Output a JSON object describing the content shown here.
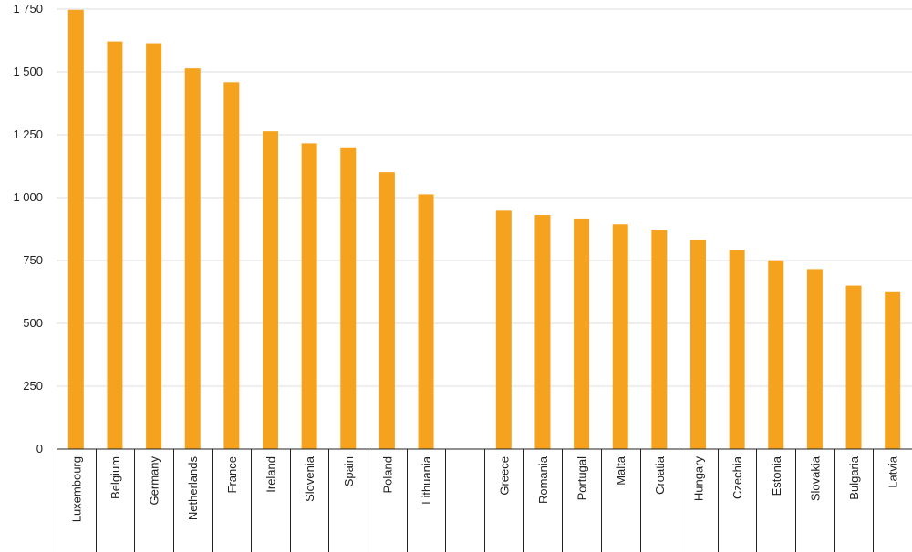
{
  "chart_data": {
    "type": "bar",
    "title": "",
    "xlabel": "",
    "ylabel": "",
    "ylim": [
      0,
      1750
    ],
    "yticks": [
      "0",
      "250",
      "500",
      "750",
      "1 000",
      "1 250",
      "1 500",
      "1 750"
    ],
    "ytick_values": [
      0,
      250,
      500,
      750,
      1000,
      1250,
      1500,
      1750
    ],
    "grid": true,
    "bar_color": "#F5A31F",
    "categories": [
      "Luxembourg",
      "Belgium",
      "Germany",
      "Netherlands",
      "France",
      "Ireland",
      "Slovenia",
      "Spain",
      "Poland",
      "Lithuania",
      "",
      "Greece",
      "Romania",
      "Portugal",
      "Malta",
      "Croatia",
      "Hungary",
      "Czechia",
      "Estonia",
      "Slovakia",
      "Bulgaria",
      "Latvia"
    ],
    "values": [
      1747,
      1621,
      1614,
      1514,
      1459,
      1264,
      1216,
      1200,
      1101,
      1013,
      null,
      948,
      931,
      917,
      894,
      873,
      831,
      793,
      751,
      716,
      650,
      624
    ]
  }
}
